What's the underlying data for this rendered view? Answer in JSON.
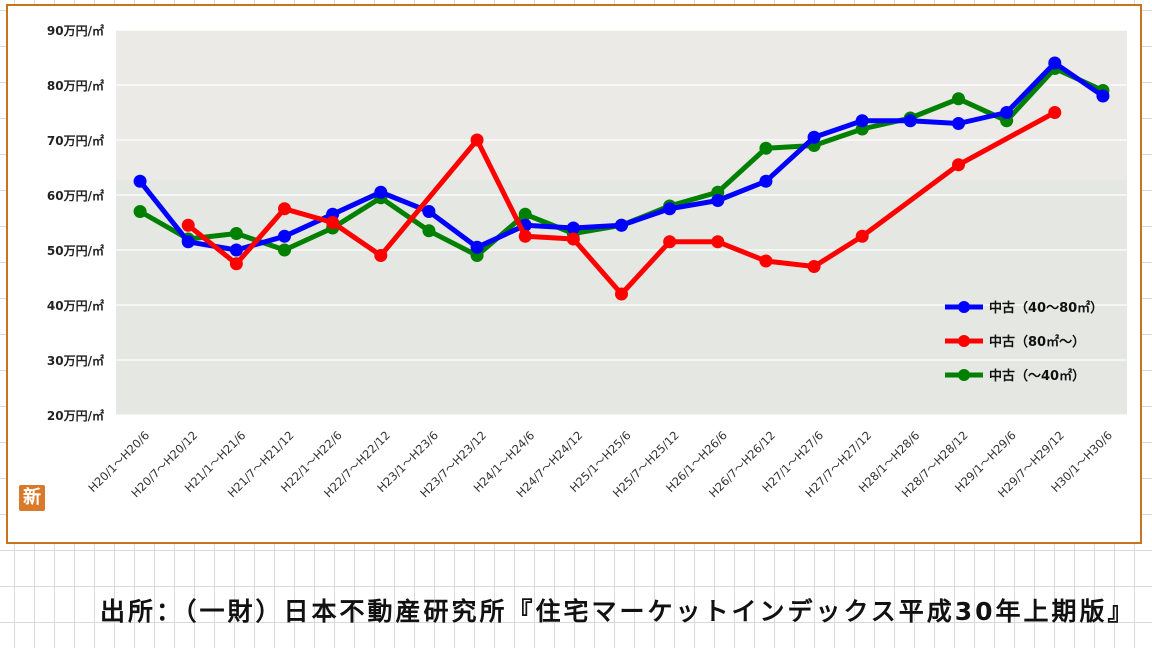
{
  "source_caption": "出所：（一財）日本不動産研究所『住宅マーケットインデックス平成30年上期版』",
  "logo_char": "新",
  "colors": {
    "frame": "#c8731e",
    "plot_bg": "#eceae6"
  },
  "chart_data": {
    "type": "line",
    "ylim": [
      20,
      90
    ],
    "y_ticks": [
      20,
      30,
      40,
      50,
      60,
      70,
      80,
      90
    ],
    "y_tick_labels": [
      "20万円/㎡",
      "30万円/㎡",
      "40万円/㎡",
      "50万円/㎡",
      "60万円/㎡",
      "70万円/㎡",
      "80万円/㎡",
      "90万円/㎡"
    ],
    "grid": "horizontal",
    "legend_position": "right",
    "categories": [
      "H20/1～H20/6",
      "H20/7～H20/12",
      "H21/1～H21/6",
      "H21/7～H21/12",
      "H22/1～H22/6",
      "H22/7～H22/12",
      "H23/1～H23/6",
      "H23/7～H23/12",
      "H24/1～H24/6",
      "H24/7～H24/12",
      "H25/1～H25/6",
      "H25/7～H25/12",
      "H26/1～H26/6",
      "H26/7～H26/12",
      "H27/1～H27/6",
      "H27/7～H27/12",
      "H28/1～H28/6",
      "H28/7～H28/12",
      "H29/1～H29/6",
      "H29/7～H29/12",
      "H30/1～H30/6"
    ],
    "series": [
      {
        "name": "中古（40～80㎡）",
        "color": "#0000ff",
        "values": [
          62.5,
          51.5,
          50.0,
          52.5,
          56.5,
          60.5,
          57.0,
          50.5,
          54.5,
          54.0,
          54.5,
          57.5,
          59.0,
          62.5,
          70.5,
          73.5,
          73.5,
          73.0,
          75.0,
          84.0,
          78.0
        ]
      },
      {
        "name": "中古（80㎡～）",
        "color": "#ff0000",
        "values": [
          null,
          54.5,
          47.5,
          57.5,
          55.0,
          49.0,
          null,
          70.0,
          52.5,
          52.0,
          42.0,
          51.5,
          51.5,
          48.0,
          47.0,
          52.5,
          null,
          65.5,
          null,
          75.0,
          null
        ]
      },
      {
        "name": "中古（～40㎡）",
        "color": "#008000",
        "values": [
          57.0,
          52.0,
          53.0,
          50.0,
          54.0,
          59.5,
          53.5,
          49.0,
          56.5,
          53.0,
          54.5,
          58.0,
          60.5,
          68.5,
          69.0,
          72.0,
          74.0,
          77.5,
          73.5,
          83.0,
          79.0
        ]
      }
    ]
  }
}
